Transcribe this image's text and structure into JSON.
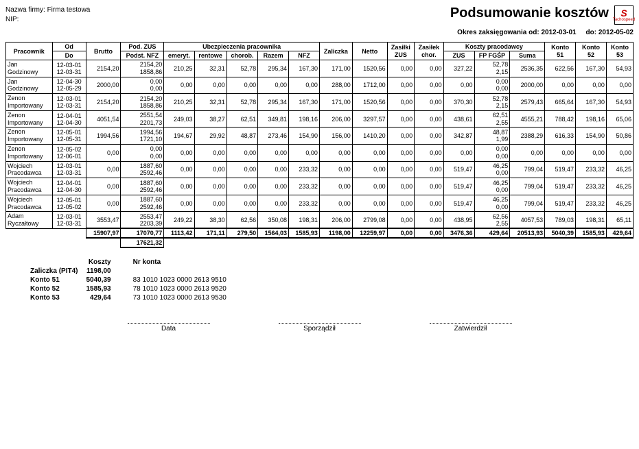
{
  "company": {
    "label": "Nazwa firmy:",
    "name": "Firma testowa",
    "nip_label": "NIP:"
  },
  "title": "Podsumowanie kosztów",
  "logo": {
    "mark": "S",
    "sub": "Tachospeed"
  },
  "period": {
    "prefix": "Okres zaksięgowania od:",
    "from": "2012-03-01",
    "to_label": "do:",
    "to": "2012-05-02"
  },
  "columns": {
    "employee": "Pracownik",
    "od": "Od",
    "do": "Do",
    "brutto": "Brutto",
    "pod_zus": "Pod. ZUS",
    "podst_nfz": "Podst. NFZ",
    "ubez_group": "Ubezpieczenia pracownika",
    "emeryt": "emeryt.",
    "rentowe": "rentowe",
    "chorob": "chorob.",
    "razem": "Razem",
    "nfz": "NFZ",
    "zaliczka": "Zaliczka",
    "netto": "Netto",
    "zasilki_zus": "Zasiłki ZUS",
    "zasilek_chor": "Zasiłek chor.",
    "koszty_group": "Koszty pracodawcy",
    "k_zus": "ZUS",
    "k_fpfgsp": "FP FGŚP",
    "k_suma": "Suma",
    "konto51": "Konto 51",
    "konto52": "Konto 52",
    "konto53": "Konto 53"
  },
  "rows": [
    {
      "emp1": "Jan",
      "emp2": "Godzinowy",
      "od": "12-03-01",
      "do": "12-03-31",
      "brutto": "2154,20",
      "pz": "2154,20",
      "pn": "1858,86",
      "e": "210,25",
      "r": "32,31",
      "c": "52,78",
      "rz": "295,34",
      "nfz": "167,30",
      "zal": "171,00",
      "net": "1520,56",
      "zz": "0,00",
      "zc": "0,00",
      "kz": "327,22",
      "kf1": "52,78",
      "kf2": "2,15",
      "ks": "2536,35",
      "k51": "622,56",
      "k52": "167,30",
      "k53": "54,93"
    },
    {
      "emp1": "Jan",
      "emp2": "Godzinowy",
      "od": "12-04-30",
      "do": "12-05-29",
      "brutto": "2000,00",
      "pz": "0,00",
      "pn": "0,00",
      "e": "0,00",
      "r": "0,00",
      "c": "0,00",
      "rz": "0,00",
      "nfz": "0,00",
      "zal": "288,00",
      "net": "1712,00",
      "zz": "0,00",
      "zc": "0,00",
      "kz": "0,00",
      "kf1": "0,00",
      "kf2": "0,00",
      "ks": "2000,00",
      "k51": "0,00",
      "k52": "0,00",
      "k53": "0,00"
    },
    {
      "emp1": "Zenon",
      "emp2": "Importowany",
      "od": "12-03-01",
      "do": "12-03-31",
      "brutto": "2154,20",
      "pz": "2154,20",
      "pn": "1858,86",
      "e": "210,25",
      "r": "32,31",
      "c": "52,78",
      "rz": "295,34",
      "nfz": "167,30",
      "zal": "171,00",
      "net": "1520,56",
      "zz": "0,00",
      "zc": "0,00",
      "kz": "370,30",
      "kf1": "52,78",
      "kf2": "2,15",
      "ks": "2579,43",
      "k51": "665,64",
      "k52": "167,30",
      "k53": "54,93"
    },
    {
      "emp1": "Zenon",
      "emp2": "Importowany",
      "od": "12-04-01",
      "do": "12-04-30",
      "brutto": "4051,54",
      "pz": "2551,54",
      "pn": "2201,73",
      "e": "249,03",
      "r": "38,27",
      "c": "62,51",
      "rz": "349,81",
      "nfz": "198,16",
      "zal": "206,00",
      "net": "3297,57",
      "zz": "0,00",
      "zc": "0,00",
      "kz": "438,61",
      "kf1": "62,51",
      "kf2": "2,55",
      "ks": "4555,21",
      "k51": "788,42",
      "k52": "198,16",
      "k53": "65,06"
    },
    {
      "emp1": "Zenon",
      "emp2": "Importowany",
      "od": "12-05-01",
      "do": "12-05-31",
      "brutto": "1994,56",
      "pz": "1994,56",
      "pn": "1721,10",
      "e": "194,67",
      "r": "29,92",
      "c": "48,87",
      "rz": "273,46",
      "nfz": "154,90",
      "zal": "156,00",
      "net": "1410,20",
      "zz": "0,00",
      "zc": "0,00",
      "kz": "342,87",
      "kf1": "48,87",
      "kf2": "1,99",
      "ks": "2388,29",
      "k51": "616,33",
      "k52": "154,90",
      "k53": "50,86"
    },
    {
      "emp1": "Zenon",
      "emp2": "Importowany",
      "od": "12-05-02",
      "do": "12-06-01",
      "brutto": "0,00",
      "pz": "0,00",
      "pn": "0,00",
      "e": "0,00",
      "r": "0,00",
      "c": "0,00",
      "rz": "0,00",
      "nfz": "0,00",
      "zal": "0,00",
      "net": "0,00",
      "zz": "0,00",
      "zc": "0,00",
      "kz": "0,00",
      "kf1": "0,00",
      "kf2": "0,00",
      "ks": "0,00",
      "k51": "0,00",
      "k52": "0,00",
      "k53": "0,00"
    },
    {
      "emp1": "Wojciech",
      "emp2": "Pracodawca",
      "od": "12-03-01",
      "do": "12-03-31",
      "brutto": "0,00",
      "pz": "1887,60",
      "pn": "2592,46",
      "e": "0,00",
      "r": "0,00",
      "c": "0,00",
      "rz": "0,00",
      "nfz": "233,32",
      "zal": "0,00",
      "net": "0,00",
      "zz": "0,00",
      "zc": "0,00",
      "kz": "519,47",
      "kf1": "46,25",
      "kf2": "0,00",
      "ks": "799,04",
      "k51": "519,47",
      "k52": "233,32",
      "k53": "46,25"
    },
    {
      "emp1": "Wojciech",
      "emp2": "Pracodawca",
      "od": "12-04-01",
      "do": "12-04-30",
      "brutto": "0,00",
      "pz": "1887,60",
      "pn": "2592,46",
      "e": "0,00",
      "r": "0,00",
      "c": "0,00",
      "rz": "0,00",
      "nfz": "233,32",
      "zal": "0,00",
      "net": "0,00",
      "zz": "0,00",
      "zc": "0,00",
      "kz": "519,47",
      "kf1": "46,25",
      "kf2": "0,00",
      "ks": "799,04",
      "k51": "519,47",
      "k52": "233,32",
      "k53": "46,25"
    },
    {
      "emp1": "Wojciech",
      "emp2": "Pracodawca",
      "od": "12-05-01",
      "do": "12-05-02",
      "brutto": "0,00",
      "pz": "1887,60",
      "pn": "2592,46",
      "e": "0,00",
      "r": "0,00",
      "c": "0,00",
      "rz": "0,00",
      "nfz": "233,32",
      "zal": "0,00",
      "net": "0,00",
      "zz": "0,00",
      "zc": "0,00",
      "kz": "519,47",
      "kf1": "46,25",
      "kf2": "0,00",
      "ks": "799,04",
      "k51": "519,47",
      "k52": "233,32",
      "k53": "46,25"
    },
    {
      "emp1": "Adam",
      "emp2": "Ryczałtowy",
      "od": "12-03-01",
      "do": "12-03-31",
      "brutto": "3553,47",
      "pz": "2553,47",
      "pn": "2203,39",
      "e": "249,22",
      "r": "38,30",
      "c": "62,56",
      "rz": "350,08",
      "nfz": "198,31",
      "zal": "206,00",
      "net": "2799,08",
      "zz": "0,00",
      "zc": "0,00",
      "kz": "438,95",
      "kf1": "62,56",
      "kf2": "2,55",
      "ks": "4057,53",
      "k51": "789,03",
      "k52": "198,31",
      "k53": "65,11"
    }
  ],
  "totals": {
    "brutto": "15907,97",
    "pz": "17070,77",
    "pn": "17621,32",
    "e": "1113,42",
    "r": "171,11",
    "c": "279,50",
    "rz": "1564,03",
    "nfz": "1585,93",
    "zal": "1198,00",
    "net": "12259,97",
    "zz": "0,00",
    "zc": "0,00",
    "kz": "3476,36",
    "kf": "429,64",
    "ks": "20513,93",
    "k51": "5040,39",
    "k52": "1585,93",
    "k53": "429,64"
  },
  "summary": {
    "koszty_hdr": "Koszty",
    "nrkonta_hdr": "Nr konta",
    "items": [
      {
        "label": "Zaliczka (PIT4)",
        "koszty": "1198,00",
        "konto": ""
      },
      {
        "label": "Konto 51",
        "koszty": "5040,39",
        "konto": "83 1010 1023 0000 2613 9510"
      },
      {
        "label": "Konto 52",
        "koszty": "1585,93",
        "konto": "78 1010 1023 0000 2613 9520"
      },
      {
        "label": "Konto 53",
        "koszty": "429,64",
        "konto": "73 1010 1023 0000 2613 9530"
      }
    ]
  },
  "sign": {
    "data": "Data",
    "sporzadzil": "Sporządził",
    "zatwierdzil": "Zatwierdził"
  }
}
